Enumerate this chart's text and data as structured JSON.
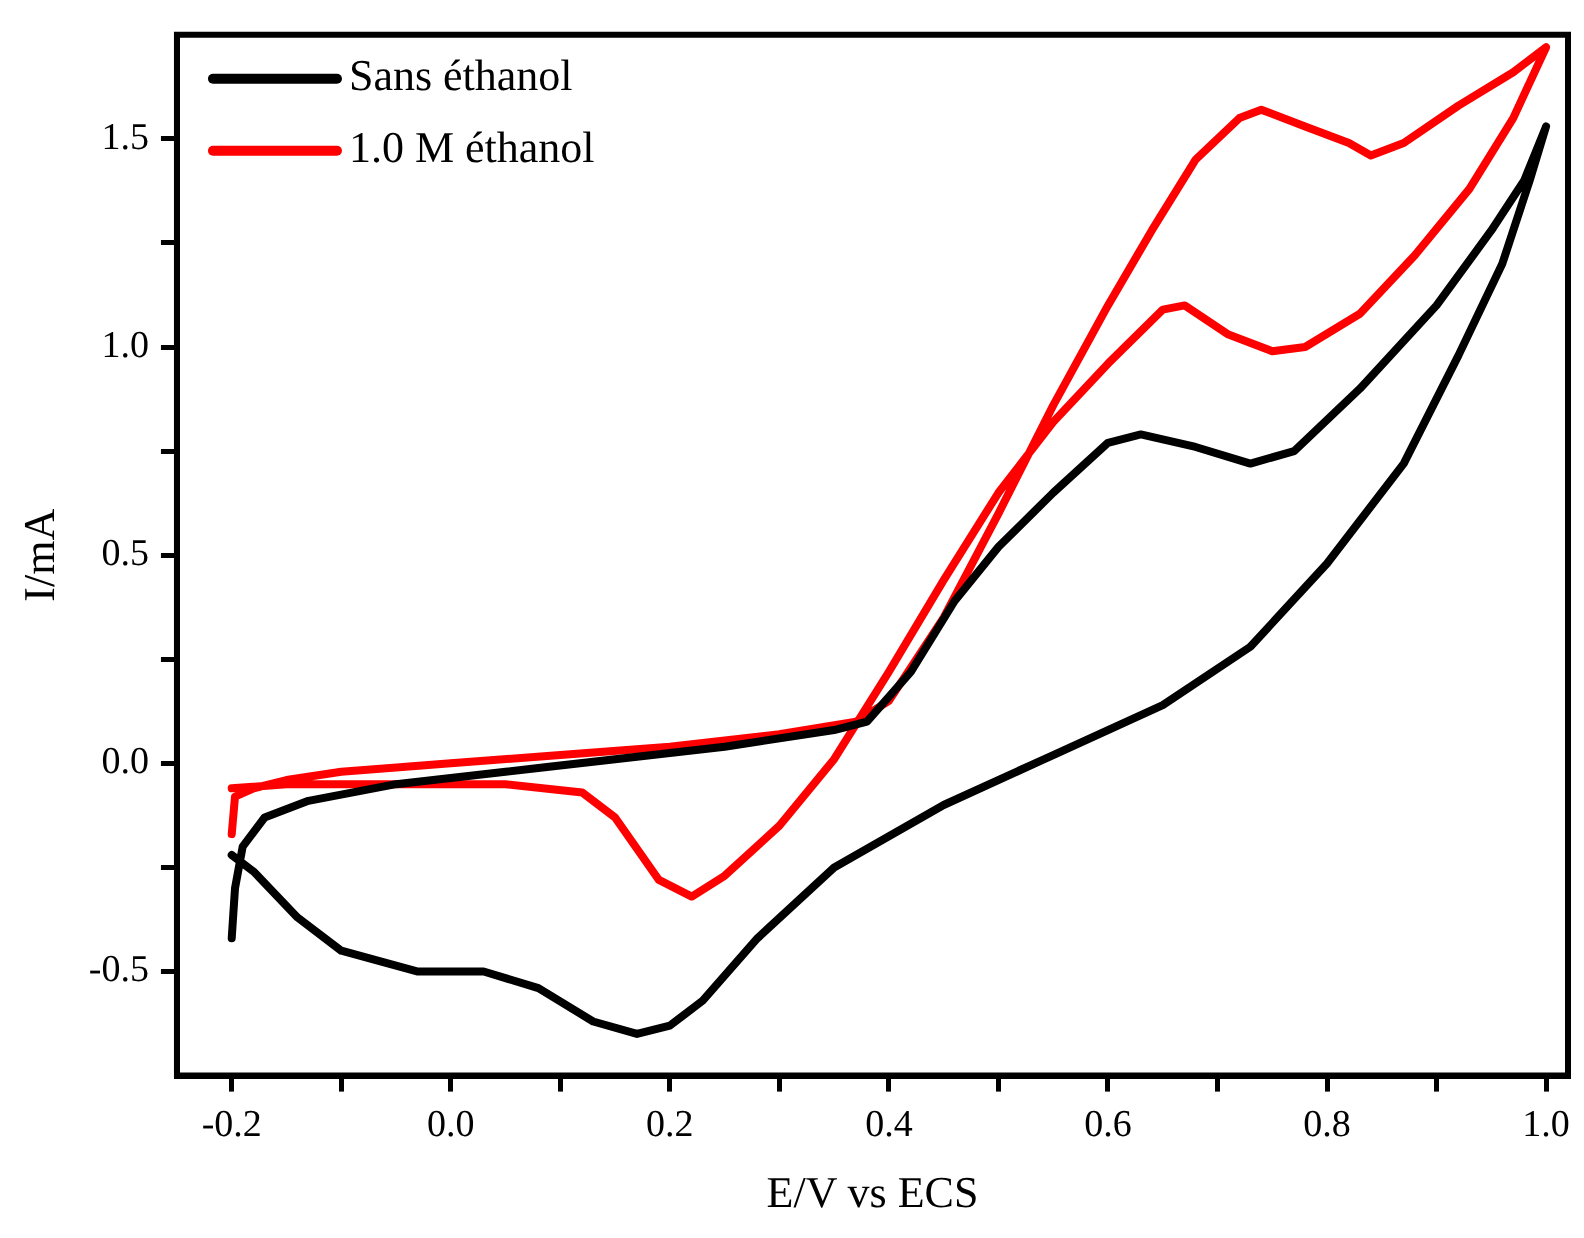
{
  "chart_data": {
    "type": "line",
    "xlabel": "E/V vs ECS",
    "ylabel": "I/mA",
    "xlim": [
      -0.25,
      1.02
    ],
    "ylim": [
      -0.75,
      1.75
    ],
    "xticks": [
      -0.2,
      {
        "value": -0.1,
        "label": null
      },
      {
        "value": 0,
        "label": "0.0"
      },
      {
        "value": 0.1,
        "label": null
      },
      0.2,
      {
        "value": 0.3,
        "label": null
      },
      0.4,
      {
        "value": 0.5,
        "label": null
      },
      0.6,
      {
        "value": 0.7,
        "label": null
      },
      0.8,
      {
        "value": 0.9,
        "label": null
      },
      {
        "value": 1,
        "label": "1.0"
      }
    ],
    "yticks": [
      -0.5,
      {
        "value": -0.25,
        "label": null
      },
      {
        "value": 0,
        "label": "0.0"
      },
      {
        "value": 0.25,
        "label": null
      },
      0.5,
      {
        "value": 0.75,
        "label": null
      },
      {
        "value": 1,
        "label": "1.0"
      },
      {
        "value": 1.25,
        "label": null
      },
      1.5
    ],
    "grid": false,
    "legend": "top left",
    "marker": "none",
    "line_style": "solid",
    "series": [
      {
        "name": "Sans éthanol",
        "color": "#000000",
        "x": [
          -0.2,
          -0.197,
          -0.19,
          -0.17,
          -0.13,
          -0.05,
          0.05,
          0.15,
          0.25,
          0.35,
          0.38,
          0.42,
          0.46,
          0.5,
          0.55,
          0.6,
          0.63,
          0.68,
          0.73,
          0.77,
          0.83,
          0.9,
          0.95,
          0.98,
          1.0,
          0.985,
          0.96,
          0.92,
          0.87,
          0.8,
          0.73,
          0.65,
          0.55,
          0.45,
          0.35,
          0.28,
          0.23,
          0.2,
          0.17,
          0.13,
          0.08,
          0.03,
          -0.03,
          -0.1,
          -0.14,
          -0.18,
          -0.2
        ],
        "values": [
          -0.42,
          -0.3,
          -0.2,
          -0.13,
          -0.09,
          -0.05,
          -0.02,
          0.01,
          0.04,
          0.08,
          0.1,
          0.22,
          0.39,
          0.52,
          0.65,
          0.77,
          0.79,
          0.76,
          0.72,
          0.75,
          0.9,
          1.1,
          1.28,
          1.4,
          1.53,
          1.4,
          1.2,
          0.98,
          0.72,
          0.48,
          0.28,
          0.14,
          0.02,
          -0.1,
          -0.25,
          -0.42,
          -0.57,
          -0.63,
          -0.65,
          -0.62,
          -0.54,
          -0.5,
          -0.5,
          -0.45,
          -0.37,
          -0.26,
          -0.22
        ]
      },
      {
        "name": "1.0 M éthanol",
        "color": "#ff0000",
        "x": [
          -0.2,
          -0.197,
          -0.18,
          -0.15,
          -0.1,
          0.0,
          0.1,
          0.2,
          0.3,
          0.37,
          0.4,
          0.45,
          0.5,
          0.55,
          0.6,
          0.64,
          0.68,
          0.72,
          0.74,
          0.78,
          0.82,
          0.84,
          0.87,
          0.92,
          0.97,
          1.0,
          0.97,
          0.93,
          0.88,
          0.83,
          0.78,
          0.75,
          0.71,
          0.67,
          0.65,
          0.6,
          0.55,
          0.5,
          0.45,
          0.4,
          0.35,
          0.3,
          0.25,
          0.22,
          0.19,
          0.15,
          0.12,
          0.05,
          -0.05,
          -0.15,
          -0.2
        ],
        "values": [
          -0.17,
          -0.08,
          -0.06,
          -0.04,
          -0.02,
          0.0,
          0.02,
          0.04,
          0.07,
          0.1,
          0.15,
          0.35,
          0.6,
          0.86,
          1.1,
          1.28,
          1.45,
          1.55,
          1.57,
          1.53,
          1.49,
          1.46,
          1.49,
          1.58,
          1.66,
          1.72,
          1.55,
          1.38,
          1.22,
          1.08,
          1.0,
          0.99,
          1.03,
          1.1,
          1.09,
          0.96,
          0.82,
          0.65,
          0.44,
          0.22,
          0.01,
          -0.15,
          -0.27,
          -0.32,
          -0.28,
          -0.13,
          -0.07,
          -0.05,
          -0.05,
          -0.05,
          -0.06
        ]
      }
    ]
  }
}
